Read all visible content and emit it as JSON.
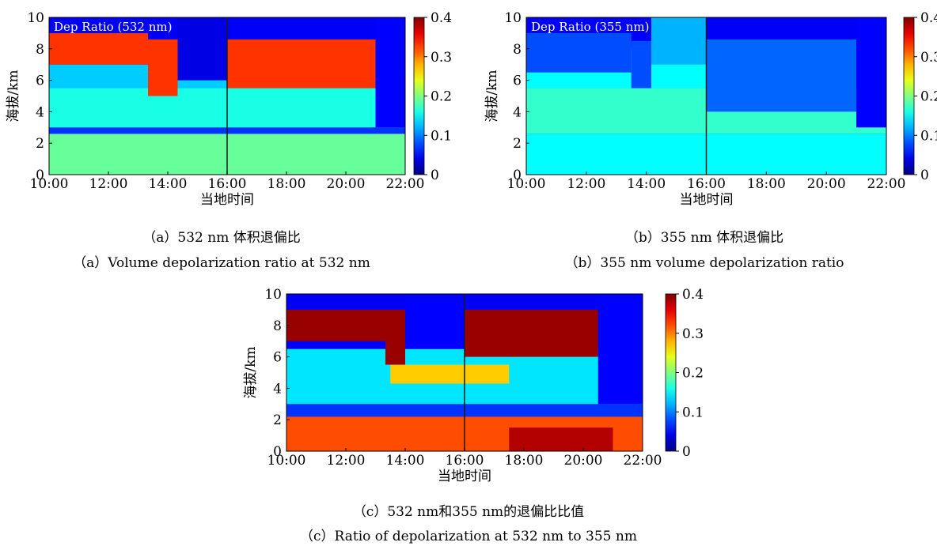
{
  "chart_data": [
    {
      "type": "heatmap",
      "title": "Dep Ratio (532 nm)",
      "xlabel": "当地时间",
      "ylabel": "海拔/km",
      "x_ticks": [
        "10:00",
        "12:00",
        "14:00",
        "16:00",
        "18:00",
        "20:00",
        "22:00"
      ],
      "y_ticks": [
        "0",
        "2",
        "4",
        "6",
        "8",
        "10"
      ],
      "xlim": [
        "10:00",
        "22:00"
      ],
      "ylim": [
        0,
        10
      ],
      "colorbar": {
        "min": 0,
        "max": 0.4,
        "ticks": [
          "0",
          "0.1",
          "0.2",
          "0.3",
          "0.4"
        ],
        "colormap": "jet"
      },
      "marker_time": "16:00",
      "layers": [
        {
          "from_time": "10:00",
          "to_time": "22:00",
          "y_bottom": 0,
          "y_top": 2.6,
          "value": 0.19
        },
        {
          "from_time": "10:00",
          "to_time": "22:00",
          "y_bottom": 2.6,
          "y_top": 3.0,
          "value": 0.07
        },
        {
          "from_time": "10:00",
          "to_time": "22:00",
          "y_bottom": 3.0,
          "y_top": 5.5,
          "value": 0.16
        },
        {
          "from_time": "10:00",
          "to_time": "21:00",
          "y_bottom": 5.5,
          "y_top": 7.0,
          "value": 0.13
        },
        {
          "from_time": "10:00",
          "to_time": "13:20",
          "y_bottom": 7.0,
          "y_top": 9.0,
          "value": 0.33
        },
        {
          "from_time": "13:20",
          "to_time": "14:20",
          "y_bottom": 5.0,
          "y_top": 8.6,
          "value": 0.33
        },
        {
          "from_time": "14:20",
          "to_time": "16:00",
          "y_bottom": 6.0,
          "y_top": 10.0,
          "value": 0.04
        },
        {
          "from_time": "16:00",
          "to_time": "21:00",
          "y_bottom": 5.5,
          "y_top": 8.6,
          "value": 0.33
        },
        {
          "from_time": "21:00",
          "to_time": "22:00",
          "y_bottom": 3.0,
          "y_top": 10.0,
          "value": 0.05
        }
      ]
    },
    {
      "type": "heatmap",
      "title": "Dep Ratio (355 nm)",
      "xlabel": "当地时间",
      "ylabel": "海拔/km",
      "x_ticks": [
        "10:00",
        "12:00",
        "14:00",
        "16:00",
        "18:00",
        "20:00",
        "22:00"
      ],
      "y_ticks": [
        "0",
        "2",
        "4",
        "6",
        "8",
        "10"
      ],
      "xlim": [
        "10:00",
        "22:00"
      ],
      "ylim": [
        0,
        10
      ],
      "colorbar": {
        "min": 0,
        "max": 0.4,
        "ticks": [
          "0",
          "0.1",
          "0.2",
          "0.3",
          "0.4"
        ],
        "colormap": "jet"
      },
      "marker_time": "16:00",
      "layers": [
        {
          "from_time": "10:00",
          "to_time": "22:00",
          "y_bottom": 0,
          "y_top": 2.6,
          "value": 0.15
        },
        {
          "from_time": "10:00",
          "to_time": "22:00",
          "y_bottom": 2.6,
          "y_top": 5.5,
          "value": 0.17
        },
        {
          "from_time": "10:00",
          "to_time": "21:00",
          "y_bottom": 5.5,
          "y_top": 8.0,
          "value": 0.15
        },
        {
          "from_time": "10:00",
          "to_time": "13:30",
          "y_bottom": 6.5,
          "y_top": 9.0,
          "value": 0.08
        },
        {
          "from_time": "13:30",
          "to_time": "14:10",
          "y_bottom": 5.5,
          "y_top": 8.5,
          "value": 0.08
        },
        {
          "from_time": "14:10",
          "to_time": "16:00",
          "y_bottom": 7.0,
          "y_top": 10.0,
          "value": 0.12
        },
        {
          "from_time": "16:00",
          "to_time": "21:00",
          "y_bottom": 4.0,
          "y_top": 8.6,
          "value": 0.09
        },
        {
          "from_time": "21:00",
          "to_time": "22:00",
          "y_bottom": 3.0,
          "y_top": 10.0,
          "value": 0.05
        }
      ]
    },
    {
      "type": "heatmap",
      "title": "",
      "xlabel": "当地时间",
      "ylabel": "海拔/km",
      "x_ticks": [
        "10:00",
        "12:00",
        "14:00",
        "16:00",
        "18:00",
        "20:00",
        "22:00"
      ],
      "y_ticks": [
        "0",
        "2",
        "4",
        "6",
        "8",
        "10"
      ],
      "xlim": [
        "10:00",
        "22:00"
      ],
      "ylim": [
        0,
        10
      ],
      "colorbar": {
        "min": 0,
        "max": 0.4,
        "ticks": [
          "0",
          "0.1",
          "0.2",
          "0.3",
          "0.4"
        ],
        "colormap": "jet"
      },
      "marker_time": "16:00",
      "layers": [
        {
          "from_time": "10:00",
          "to_time": "22:00",
          "y_bottom": 0,
          "y_top": 2.2,
          "value": 0.32
        },
        {
          "from_time": "17:30",
          "to_time": "21:00",
          "y_bottom": 0,
          "y_top": 1.5,
          "value": 0.38
        },
        {
          "from_time": "10:00",
          "to_time": "22:00",
          "y_bottom": 2.2,
          "y_top": 3.0,
          "value": 0.07
        },
        {
          "from_time": "10:00",
          "to_time": "22:00",
          "y_bottom": 3.0,
          "y_top": 6.5,
          "value": 0.14
        },
        {
          "from_time": "13:30",
          "to_time": "17:30",
          "y_bottom": 4.3,
          "y_top": 5.5,
          "value": 0.27
        },
        {
          "from_time": "10:00",
          "to_time": "13:20",
          "y_bottom": 7.0,
          "y_top": 9.0,
          "value": 0.39
        },
        {
          "from_time": "13:20",
          "to_time": "14:00",
          "y_bottom": 5.5,
          "y_top": 9.0,
          "value": 0.39
        },
        {
          "from_time": "14:00",
          "to_time": "16:00",
          "y_bottom": 6.5,
          "y_top": 10.0,
          "value": 0.05
        },
        {
          "from_time": "16:00",
          "to_time": "20:30",
          "y_bottom": 6.0,
          "y_top": 9.0,
          "value": 0.39
        },
        {
          "from_time": "20:30",
          "to_time": "22:00",
          "y_bottom": 3.0,
          "y_top": 10.0,
          "value": 0.05
        }
      ]
    }
  ],
  "captions": {
    "a_cn": "（a）532 nm 体积退偏比",
    "a_en": "（a）Volume depolarization ratio at 532 nm",
    "b_cn": "（b）355 nm 体积退偏比",
    "b_en": "（b）355 nm volume depolarization ratio",
    "c_cn": "（c）532 nm和355 nm的退偏比比值",
    "c_en": "（c）Ratio of depolarization at 532 nm to 355 nm"
  }
}
